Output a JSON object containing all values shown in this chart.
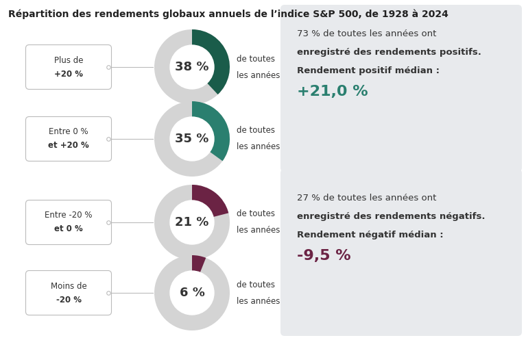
{
  "title": "Répartition des rendements globaux annuels de l’indice S&P 500, de 1928 à 2024",
  "background_color": "#ffffff",
  "panel_bg_color": "#e8eaed",
  "donut_bg_color": "#d4d4d4",
  "rows": [
    {
      "label_line1": "Plus de",
      "label_line2": "+20 %",
      "pct": 38,
      "color": "#1a5c4a",
      "text": "de toutes\nles années"
    },
    {
      "label_line1": "Entre 0 %",
      "label_line2": "et +20 %",
      "pct": 35,
      "color": "#2a7f6f",
      "text": "de toutes\nles années"
    },
    {
      "label_line1": "Entre -20 %",
      "label_line2": "et 0 %",
      "pct": 21,
      "color": "#6b2344",
      "text": "de toutes\nles années"
    },
    {
      "label_line1": "Moins de",
      "label_line2": "-20 %",
      "pct": 6,
      "color": "#6b2344",
      "text": "de toutes\nles années"
    }
  ],
  "panel_top": {
    "line1": "73 % de toutes les années ont",
    "line2": "enregistré des rendements positifs.",
    "line3": "Rendement positif médian :",
    "line4": "+21,0 %",
    "line4_color": "#2a7f6f"
  },
  "panel_bottom": {
    "line1": "27 % de toutes les années ont",
    "line2": "enregistré des rendements négatifs.",
    "line3": "Rendement négatif médian :",
    "line4": "-9,5 %",
    "line4_color": "#6b2344"
  },
  "label_box_color": "#ffffff",
  "label_box_edge": "#bbbbbb",
  "connector_color": "#bbbbbb",
  "text_color": "#333333",
  "title_color": "#222222",
  "donut_center_color": "#ffffff"
}
